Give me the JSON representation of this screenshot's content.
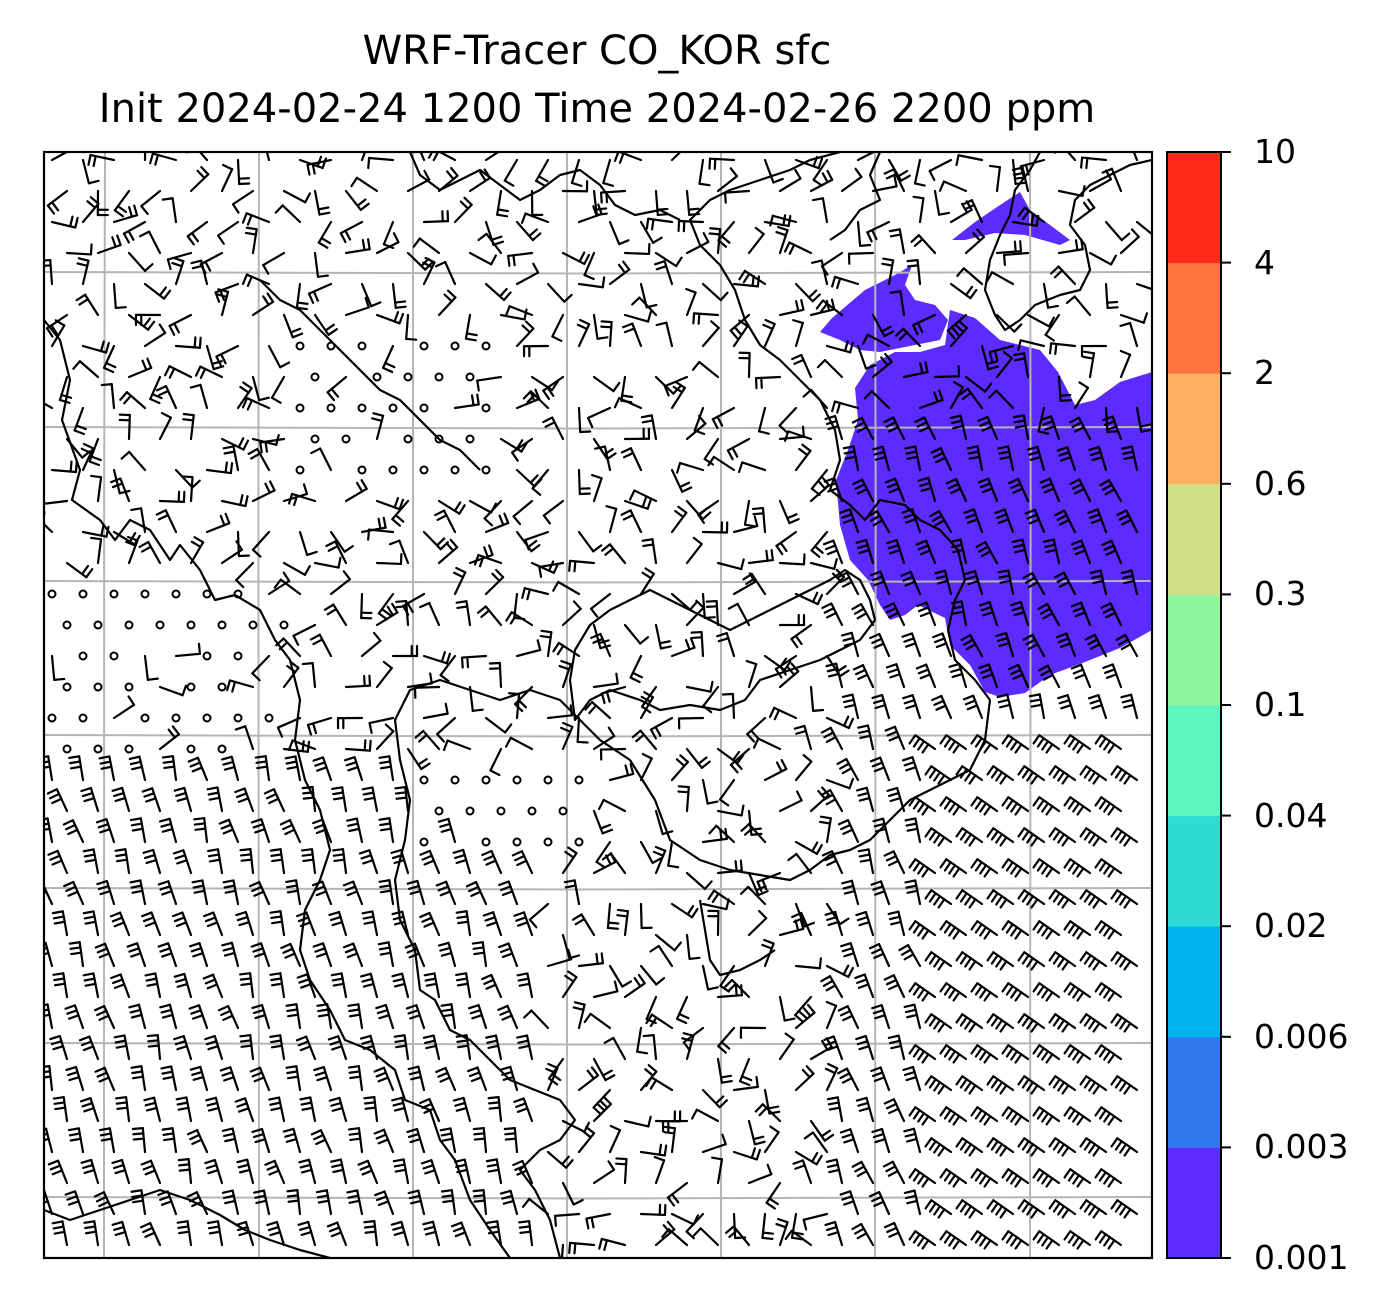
{
  "title": {
    "line1": "WRF-Tracer CO_KOR sfc",
    "line2": "Init 2024-02-24 1200 Time 2024-02-26 2200 ppm"
  },
  "colorbar": {
    "levels": [
      "0.001",
      "0.003",
      "0.006",
      "0.02",
      "0.04",
      "0.1",
      "0.3",
      "0.6",
      "2",
      "4",
      "10"
    ],
    "colors": [
      "#5b2bff",
      "#3377ee",
      "#00b3ec",
      "#2fdbd4",
      "#5ff7c0",
      "#8ff59b",
      "#d0e084",
      "#ffb060",
      "#ff7540",
      "#ff2a1a"
    ]
  },
  "map": {
    "plume_color": "#5b2bff",
    "coastline_color": "#000000",
    "grid_color": "#b5b5b5",
    "grid_columns": 8,
    "grid_rows": 8,
    "overlay": "wind barbs"
  }
}
